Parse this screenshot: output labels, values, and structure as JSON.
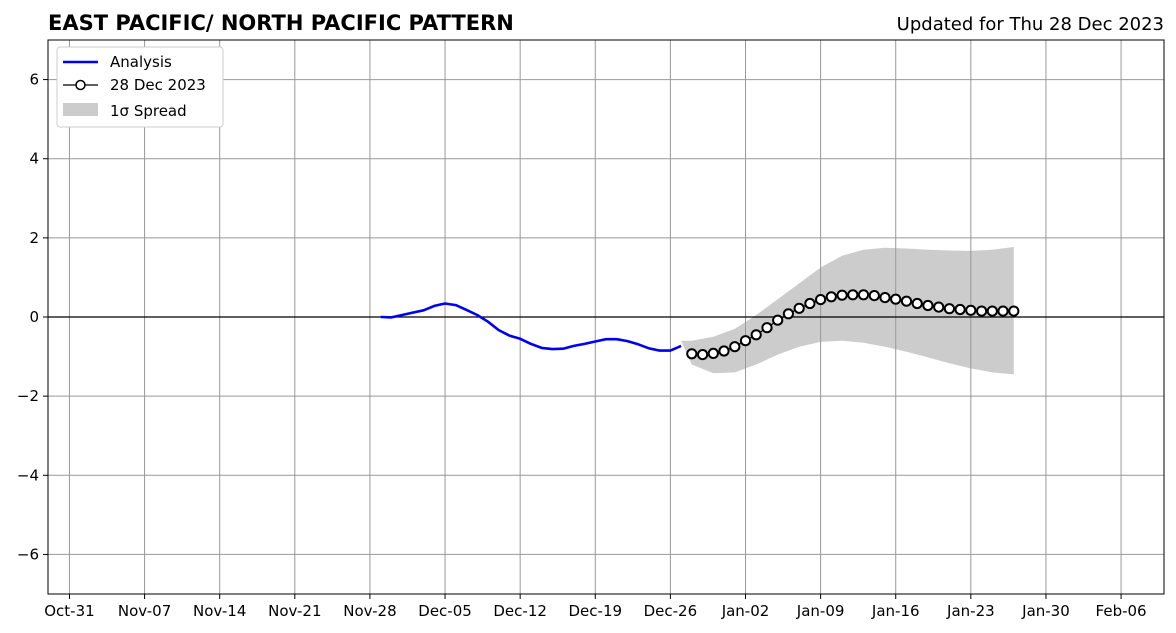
{
  "chart_data": {
    "type": "line",
    "title": "EAST PACIFIC/ NORTH PACIFIC PATTERN",
    "subtitle": "Updated for Thu 28 Dec 2023",
    "xlabel": "",
    "ylabel": "",
    "x_tick_labels": [
      "Oct-31",
      "Nov-07",
      "Nov-14",
      "Nov-21",
      "Nov-28",
      "Dec-05",
      "Dec-12",
      "Dec-19",
      "Dec-26",
      "Jan-02",
      "Jan-09",
      "Jan-16",
      "Jan-23",
      "Jan-30",
      "Feb-06"
    ],
    "y_tick_labels": [
      "−6",
      "−4",
      "−2",
      "0",
      "2",
      "4",
      "6"
    ],
    "x_range_days": [
      -2,
      102
    ],
    "ylim": [
      -7,
      7
    ],
    "grid": true,
    "zero_line": true,
    "legend_position": "top-left",
    "legend": {
      "analysis": "Analysis",
      "forecast": "28 Dec 2023",
      "spread": "1σ Spread"
    },
    "colors": {
      "analysis": "#0000ee",
      "forecast_marker_edge": "#000000",
      "forecast_marker_face": "#ffffff",
      "spread": "#cccccc",
      "grid": "#999999"
    },
    "series": [
      {
        "name": "Analysis",
        "x": [
          "Nov-29",
          "Nov-30",
          "Dec-01",
          "Dec-02",
          "Dec-03",
          "Dec-04",
          "Dec-05",
          "Dec-06",
          "Dec-07",
          "Dec-08",
          "Dec-09",
          "Dec-10",
          "Dec-11",
          "Dec-12",
          "Dec-13",
          "Dec-14",
          "Dec-15",
          "Dec-16",
          "Dec-17",
          "Dec-18",
          "Dec-19",
          "Dec-20",
          "Dec-21",
          "Dec-22",
          "Dec-23",
          "Dec-24",
          "Dec-25",
          "Dec-26",
          "Dec-27"
        ],
        "values": [
          0.0,
          -0.01,
          0.05,
          0.11,
          0.17,
          0.28,
          0.34,
          0.3,
          0.18,
          0.05,
          -0.12,
          -0.33,
          -0.47,
          -0.55,
          -0.68,
          -0.78,
          -0.81,
          -0.8,
          -0.73,
          -0.68,
          -0.62,
          -0.56,
          -0.56,
          -0.61,
          -0.69,
          -0.79,
          -0.85,
          -0.85,
          -0.73
        ]
      },
      {
        "name": "28 Dec 2023",
        "x": [
          "Dec-28",
          "Dec-29",
          "Dec-30",
          "Dec-31",
          "Jan-01",
          "Jan-02",
          "Jan-03",
          "Jan-04",
          "Jan-05",
          "Jan-06",
          "Jan-07",
          "Jan-08",
          "Jan-09",
          "Jan-10",
          "Jan-11",
          "Jan-12",
          "Jan-13",
          "Jan-14",
          "Jan-15",
          "Jan-16",
          "Jan-17",
          "Jan-18",
          "Jan-19",
          "Jan-20",
          "Jan-21",
          "Jan-22",
          "Jan-23",
          "Jan-24",
          "Jan-25",
          "Jan-26",
          "Jan-27"
        ],
        "values": [
          -0.93,
          -0.95,
          -0.92,
          -0.86,
          -0.75,
          -0.6,
          -0.45,
          -0.27,
          -0.08,
          0.08,
          0.22,
          0.34,
          0.44,
          0.51,
          0.55,
          0.56,
          0.56,
          0.54,
          0.49,
          0.45,
          0.4,
          0.34,
          0.29,
          0.25,
          0.21,
          0.19,
          0.17,
          0.15,
          0.15,
          0.15,
          0.15
        ]
      }
    ],
    "spread": {
      "name": "1σ Spread",
      "x": [
        "Dec-27",
        "Dec-28",
        "Dec-30",
        "Jan-01",
        "Jan-03",
        "Jan-05",
        "Jan-07",
        "Jan-09",
        "Jan-11",
        "Jan-13",
        "Jan-15",
        "Jan-17",
        "Jan-19",
        "Jan-21",
        "Jan-23",
        "Jan-25",
        "Jan-27"
      ],
      "upper": [
        -0.6,
        -0.6,
        -0.5,
        -0.3,
        0.05,
        0.45,
        0.85,
        1.25,
        1.55,
        1.7,
        1.75,
        1.73,
        1.7,
        1.68,
        1.67,
        1.7,
        1.77
      ],
      "lower": [
        -0.6,
        -1.2,
        -1.42,
        -1.4,
        -1.2,
        -0.95,
        -0.75,
        -0.63,
        -0.6,
        -0.65,
        -0.75,
        -0.88,
        -1.02,
        -1.17,
        -1.3,
        -1.4,
        -1.45
      ]
    }
  }
}
